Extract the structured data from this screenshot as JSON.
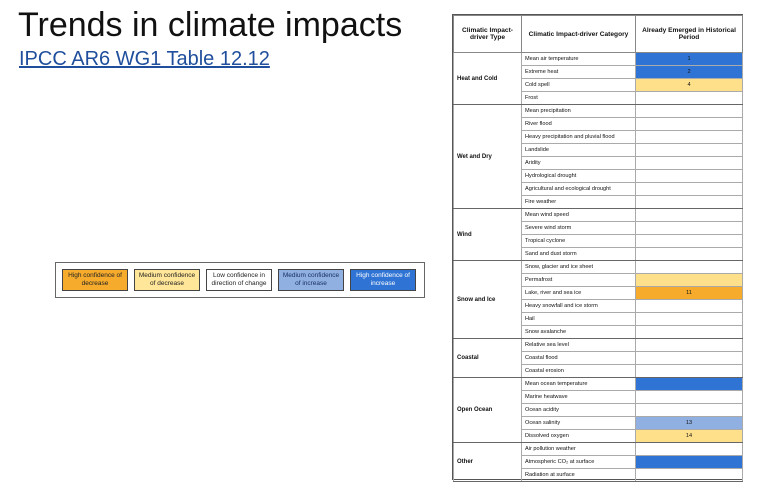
{
  "title": "Trends in climate impacts",
  "subtitle": "IPCC AR6 WG1 Table 12.12",
  "legend": [
    {
      "label": "High confidence of decrease",
      "color": "#f6ab2c"
    },
    {
      "label": "Medium confidence of decrease",
      "color": "#ffe699"
    },
    {
      "label": "Low confidence in direction of change",
      "color": "#ffffff"
    },
    {
      "label": "Medium confidence of increase",
      "color": "#8fb0e0"
    },
    {
      "label": "High confidence of increase",
      "color": "#2f74d4"
    }
  ],
  "table": {
    "headers": [
      "Climatic Impact-driver Type",
      "Climatic Impact-driver Category",
      "Already Emerged in Historical Period"
    ],
    "groups": [
      {
        "type": "Heat and Cold",
        "rows": [
          {
            "category": "Mean air temperature",
            "value": 1,
            "color": "#2f74d4"
          },
          {
            "category": "Extreme heat",
            "value": 2,
            "color": "#2f74d4"
          },
          {
            "category": "Cold spell",
            "value": 4,
            "color": "#ffe08a"
          },
          {
            "category": "Frost",
            "value": null,
            "color": null
          }
        ]
      },
      {
        "type": "Wet and Dry",
        "rows": [
          {
            "category": "Mean precipitation",
            "value": null,
            "color": null
          },
          {
            "category": "River flood",
            "value": null,
            "color": null
          },
          {
            "category": "Heavy precipitation and pluvial flood",
            "value": null,
            "color": null
          },
          {
            "category": "Landslide",
            "value": null,
            "color": null
          },
          {
            "category": "Aridity",
            "value": null,
            "color": null
          },
          {
            "category": "Hydrological drought",
            "value": null,
            "color": null
          },
          {
            "category": "Agricultural and ecological drought",
            "value": null,
            "color": null
          },
          {
            "category": "Fire weather",
            "value": null,
            "color": null
          }
        ]
      },
      {
        "type": "Wind",
        "rows": [
          {
            "category": "Mean wind speed",
            "value": null,
            "color": null
          },
          {
            "category": "Severe wind storm",
            "value": null,
            "color": null
          },
          {
            "category": "Tropical cyclone",
            "value": null,
            "color": null
          },
          {
            "category": "Sand and dust storm",
            "value": null,
            "color": null
          }
        ]
      },
      {
        "type": "Snow and Ice",
        "rows": [
          {
            "category": "Snow, glacier and ice sheet",
            "value": null,
            "color": null
          },
          {
            "category": "Permafrost",
            "value": null,
            "color": "#ffe08a"
          },
          {
            "category": "Lake, river and sea ice",
            "value": 11,
            "color": "#f6ab2c"
          },
          {
            "category": "Heavy snowfall and ice storm",
            "value": null,
            "color": null
          },
          {
            "category": "Hail",
            "value": null,
            "color": null
          },
          {
            "category": "Snow avalanche",
            "value": null,
            "color": null
          }
        ]
      },
      {
        "type": "Coastal",
        "rows": [
          {
            "category": "Relative sea level",
            "value": null,
            "color": null
          },
          {
            "category": "Coastal flood",
            "value": null,
            "color": null
          },
          {
            "category": "Coastal erosion",
            "value": null,
            "color": null
          }
        ]
      },
      {
        "type": "Open Ocean",
        "rows": [
          {
            "category": "Mean ocean temperature",
            "value": null,
            "color": "#2f74d4"
          },
          {
            "category": "Marine heatwave",
            "value": null,
            "color": null
          },
          {
            "category": "Ocean acidity",
            "value": null,
            "color": null
          },
          {
            "category": "Ocean salinity",
            "value": 13,
            "color": "#8fb0e0"
          },
          {
            "category": "Dissolved oxygen",
            "value": 14,
            "color": "#ffe08a"
          }
        ]
      },
      {
        "type": "Other",
        "rows": [
          {
            "category": "Air pollution weather",
            "value": null,
            "color": null
          },
          {
            "category": "Atmospheric CO₂ at surface",
            "value": null,
            "color": "#2f74d4"
          },
          {
            "category": "Radiation at surface",
            "value": null,
            "color": null
          }
        ]
      }
    ]
  }
}
